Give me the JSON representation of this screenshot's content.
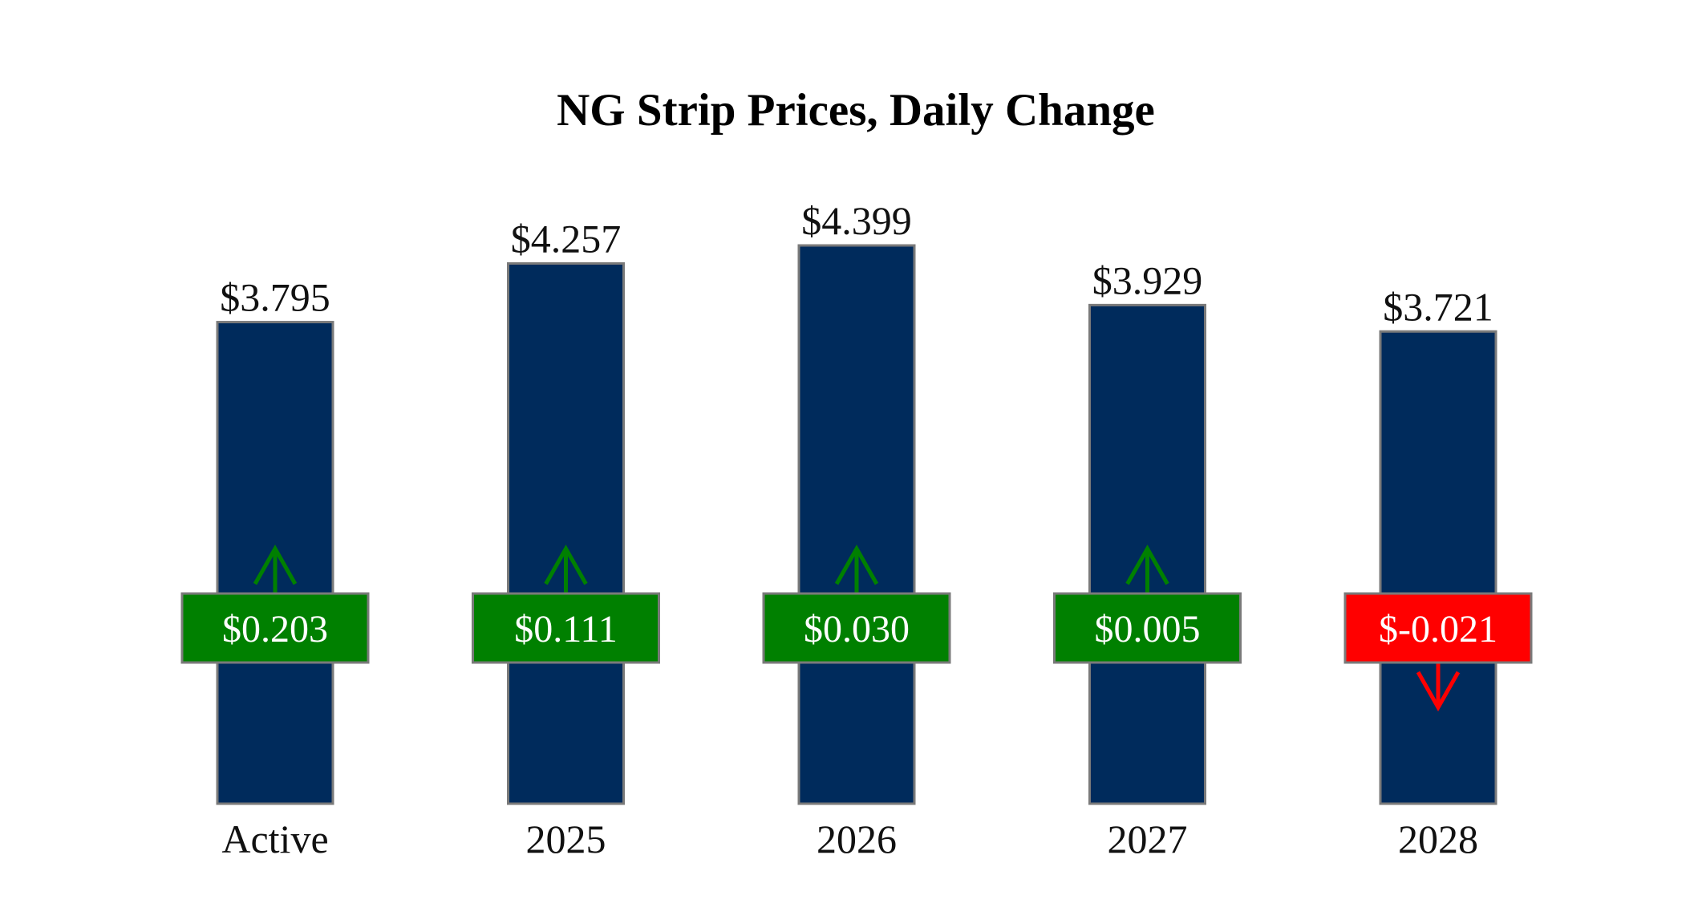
{
  "chart_data": {
    "type": "bar",
    "title": "NG Strip Prices, Daily Change",
    "categories": [
      "Active",
      "2025",
      "2026",
      "2027",
      "2028"
    ],
    "values": [
      3.795,
      4.257,
      4.399,
      3.929,
      3.721
    ],
    "value_labels": [
      "$3.795",
      "$4.257",
      "$4.399",
      "$3.929",
      "$3.721"
    ],
    "changes": [
      0.203,
      0.111,
      0.03,
      0.005,
      -0.021
    ],
    "change_labels": [
      "$0.203",
      "$0.111",
      "$0.030",
      "$0.005",
      "$-0.021"
    ],
    "xlabel": "",
    "ylabel": "",
    "ylim": [
      0,
      4.399
    ],
    "grid": false,
    "colors": {
      "bar": "#002b5c",
      "bar_edge": "#7a7a7a",
      "positive": "#008000",
      "negative": "#ff0000",
      "box_edge": "#7a7a7a"
    }
  }
}
